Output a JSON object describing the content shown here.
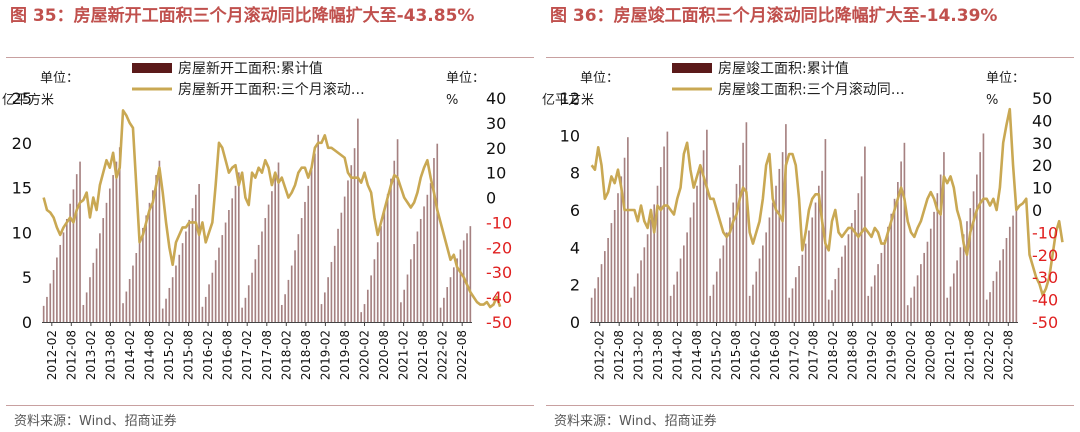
{
  "source_label": "资料来源：Wind、招商证券",
  "chart_data": [
    {
      "type": "bar",
      "title": "图 35：房屋新开工面积三个月滚动同比降幅扩大至-43.85%",
      "y_label": "单位：亿平方米",
      "y2_label": "单位：%",
      "ylim": [
        0,
        25
      ],
      "yticks": [
        0,
        5,
        10,
        15,
        20,
        25
      ],
      "y2lim": [
        -50,
        40
      ],
      "y2ticks": [
        -50,
        -40,
        -30,
        -20,
        -10,
        0,
        10,
        20,
        30,
        40
      ],
      "x_ticks": [
        "2012-02",
        "2012-08",
        "2013-02",
        "2013-08",
        "2014-02",
        "2014-08",
        "2015-02",
        "2015-08",
        "2016-02",
        "2016-08",
        "2017-02",
        "2017-08",
        "2018-02",
        "2018-08",
        "2019-02",
        "2019-08",
        "2020-02",
        "2020-08",
        "2021-02",
        "2021-08",
        "2022-02",
        "2022-08"
      ],
      "legend": [
        "房屋新开工面积:累计值",
        "房屋新开工面积:三个月滚动…"
      ],
      "legend_position": "top",
      "grid": false,
      "series": [
        {
          "name": "房屋新开工面积:累计值",
          "type": "bar",
          "axis": "left",
          "color": "#5b1a1a",
          "values": [
            1.8,
            2.8,
            4.3,
            5.8,
            7.2,
            8.6,
            10.0,
            11.5,
            13.2,
            14.8,
            16.5,
            17.9,
            1.9,
            3.3,
            5.0,
            6.6,
            8.2,
            9.9,
            11.6,
            13.3,
            14.9,
            16.4,
            17.9,
            19.5,
            2.1,
            3.4,
            4.8,
            6.3,
            7.7,
            9.1,
            10.5,
            11.9,
            13.3,
            14.7,
            16.4,
            18.0,
            1.5,
            2.6,
            3.8,
            5.0,
            6.3,
            7.5,
            8.8,
            10.1,
            11.4,
            12.7,
            14.2,
            15.4,
            1.7,
            2.8,
            4.2,
            5.5,
            6.9,
            8.3,
            9.7,
            11.1,
            12.5,
            13.8,
            15.2,
            16.7,
            1.6,
            2.7,
            4.1,
            5.5,
            7.0,
            8.6,
            10.1,
            11.6,
            13.1,
            14.6,
            16.2,
            17.8,
            1.9,
            3.1,
            4.7,
            6.3,
            8.0,
            9.8,
            11.6,
            13.4,
            15.2,
            17.0,
            18.8,
            20.9,
            2.0,
            3.3,
            5.0,
            6.7,
            8.5,
            10.4,
            12.2,
            14.0,
            15.8,
            17.5,
            19.4,
            22.7,
            1.1,
            2.0,
            3.6,
            5.2,
            7.0,
            8.9,
            10.7,
            12.5,
            14.3,
            16.0,
            18.0,
            20.4,
            2.2,
            3.6,
            5.3,
            7.0,
            8.7,
            10.1,
            11.5,
            12.9,
            14.2,
            15.5,
            18.3,
            19.9,
            1.6,
            2.7,
            3.9,
            5.0,
            6.1,
            7.1,
            8.1,
            9.1,
            9.9,
            10.7
          ]
        },
        {
          "name": "房屋新开工面积:三个月滚动…",
          "type": "line",
          "axis": "right",
          "color": "#c9a853",
          "values": [
            0,
            -5,
            -6,
            -8,
            -12,
            -15,
            -12,
            -10,
            -8,
            -10,
            -5,
            -2,
            -1,
            2,
            -8,
            0,
            -5,
            5,
            10,
            15,
            12,
            18,
            8,
            12,
            35,
            33,
            30,
            28,
            5,
            -18,
            -15,
            -10,
            -5,
            -2,
            5,
            12,
            2,
            -10,
            -20,
            -27,
            -18,
            -15,
            -12,
            -12,
            -10,
            -10,
            -10,
            -15,
            -10,
            -18,
            -14,
            -10,
            5,
            22,
            20,
            15,
            10,
            12,
            13,
            5,
            10,
            0,
            -3,
            10,
            8,
            12,
            10,
            15,
            12,
            5,
            10,
            6,
            8,
            4,
            0,
            2,
            5,
            10,
            12,
            12,
            8,
            12,
            20,
            22,
            22,
            25,
            20,
            20,
            19,
            18,
            17,
            16,
            10,
            8,
            8,
            8,
            6,
            10,
            5,
            2,
            -8,
            -15,
            -10,
            -5,
            0,
            5,
            9,
            8,
            4,
            0,
            -2,
            -4,
            -2,
            2,
            8,
            12,
            15,
            8,
            2,
            -5,
            -10,
            -15,
            -20,
            -25,
            -23,
            -28,
            -30,
            -32,
            -35,
            -38,
            -40,
            -42,
            -43,
            -43,
            -42,
            -44,
            -43,
            -40,
            -43.85
          ]
        }
      ]
    },
    {
      "type": "bar",
      "title": "图 36：房屋竣工面积三个月滚动同比降幅扩大至-14.39%",
      "y_label": "单位：亿平方米",
      "y2_label": "单位：%",
      "ylim": [
        0,
        12
      ],
      "yticks": [
        0,
        2,
        4,
        6,
        8,
        10,
        12
      ],
      "y2lim": [
        -50,
        50
      ],
      "y2ticks": [
        -50,
        -40,
        -30,
        -20,
        -10,
        0,
        10,
        20,
        30,
        40,
        50
      ],
      "x_ticks": [
        "2012-02",
        "2012-08",
        "2013-02",
        "2013-08",
        "2014-02",
        "2014-08",
        "2015-02",
        "2015-08",
        "2016-02",
        "2016-08",
        "2017-02",
        "2017-08",
        "2018-02",
        "2018-08",
        "2019-02",
        "2019-08",
        "2020-02",
        "2020-08",
        "2021-02",
        "2021-08",
        "2022-02",
        "2022-08"
      ],
      "legend": [
        "房屋竣工面积:累计值",
        "房屋竣工面积:三个月滚动同…"
      ],
      "legend_position": "top",
      "grid": false,
      "series": [
        {
          "name": "房屋竣工面积:累计值",
          "type": "bar",
          "axis": "left",
          "color": "#5b1a1a",
          "values": [
            1.3,
            1.8,
            2.4,
            3.1,
            3.8,
            4.5,
            5.3,
            6.0,
            6.9,
            7.8,
            8.8,
            9.9,
            1.3,
            1.9,
            2.6,
            3.3,
            4.0,
            4.7,
            5.5,
            6.3,
            7.3,
            8.3,
            9.4,
            10.2,
            1.4,
            2.0,
            2.7,
            3.4,
            4.1,
            4.8,
            5.6,
            6.4,
            7.3,
            8.2,
            9.2,
            10.3,
            1.4,
            2.0,
            2.7,
            3.4,
            4.1,
            4.8,
            5.6,
            6.4,
            7.4,
            8.4,
            9.6,
            10.7,
            1.4,
            2.0,
            2.7,
            3.4,
            4.1,
            4.8,
            5.6,
            6.4,
            7.3,
            8.2,
            9.1,
            10.6,
            1.3,
            1.8,
            2.4,
            3.0,
            3.6,
            4.2,
            4.9,
            5.6,
            6.4,
            7.3,
            8.1,
            9.8,
            1.2,
            1.7,
            2.3,
            2.9,
            3.5,
            4.1,
            4.7,
            5.3,
            6.0,
            6.9,
            7.8,
            9.4,
            1.4,
            1.9,
            2.5,
            3.1,
            3.7,
            4.4,
            5.1,
            5.8,
            6.6,
            7.5,
            8.6,
            9.6,
            0.9,
            1.3,
            1.9,
            2.5,
            3.1,
            3.7,
            4.3,
            5.0,
            5.9,
            6.9,
            7.9,
            9.1,
            1.3,
            1.9,
            2.6,
            3.3,
            4.0,
            4.7,
            5.4,
            6.1,
            7.0,
            7.9,
            9.1,
            10.1,
            1.2,
            1.6,
            2.2,
            2.7,
            3.3,
            3.9,
            4.5,
            5.1,
            5.7,
            6.3
          ]
        },
        {
          "name": "房屋竣工面积:三个月滚动同…",
          "type": "line",
          "axis": "right",
          "color": "#c9a853",
          "values": [
            20,
            18,
            28,
            20,
            5,
            8,
            15,
            12,
            18,
            10,
            0,
            0,
            0,
            0,
            -5,
            2,
            -5,
            -8,
            0,
            -10,
            2,
            0,
            2,
            2,
            0,
            -2,
            5,
            10,
            25,
            30,
            18,
            10,
            15,
            20,
            15,
            10,
            5,
            5,
            0,
            -5,
            -10,
            -12,
            -10,
            -5,
            -2,
            5,
            10,
            8,
            -10,
            -15,
            -10,
            -5,
            5,
            20,
            25,
            5,
            0,
            -2,
            -5,
            20,
            25,
            25,
            20,
            5,
            -18,
            -10,
            0,
            5,
            7,
            7,
            -5,
            -15,
            -18,
            -5,
            0,
            -10,
            -12,
            -10,
            -8,
            -8,
            -10,
            -12,
            -10,
            -8,
            -10,
            -12,
            -8,
            -10,
            -15,
            -15,
            -10,
            -5,
            0,
            5,
            10,
            5,
            -5,
            -10,
            -12,
            -8,
            -5,
            0,
            5,
            8,
            5,
            0,
            -2,
            15,
            12,
            15,
            10,
            0,
            -5,
            -15,
            -20,
            -10,
            -5,
            0,
            3,
            5,
            5,
            2,
            5,
            0,
            10,
            30,
            38,
            45,
            20,
            0,
            2,
            3,
            5,
            -20,
            -25,
            -30,
            -33,
            -38,
            -35,
            -30,
            -20,
            -10,
            -5,
            -14.39
          ]
        }
      ]
    }
  ]
}
